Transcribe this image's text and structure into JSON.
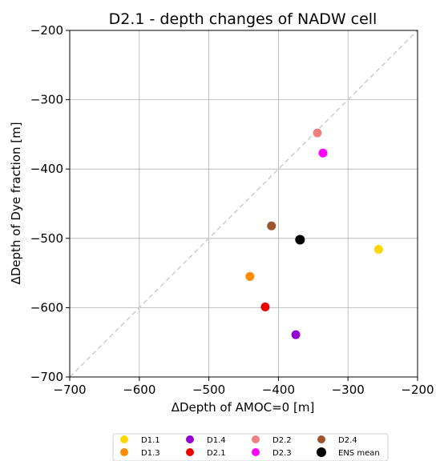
{
  "chart_data": {
    "type": "scatter",
    "title": "D2.1 - depth changes of NADW cell",
    "xlabel": "ΔDepth of AMOC=0 [m]",
    "ylabel": "ΔDepth of Dye fraction [m]",
    "xlim": [
      -700,
      -200
    ],
    "ylim": [
      -700,
      -200
    ],
    "xticks": [
      -700,
      -600,
      -500,
      -400,
      -300,
      -200
    ],
    "yticks": [
      -700,
      -600,
      -500,
      -400,
      -300,
      -200
    ],
    "tick_labels_x": [
      "−700",
      "−600",
      "−500",
      "−400",
      "−300",
      "−200"
    ],
    "tick_labels_y": [
      "−700",
      "−600",
      "−500",
      "−400",
      "−300",
      "−200"
    ],
    "grid": true,
    "reference_line": "y = x (dashed, light gray)",
    "legend_placement": "bottom-center",
    "series": [
      {
        "name": "D1.1",
        "color": "#FFD700",
        "x": -256,
        "y": -516
      },
      {
        "name": "D1.3",
        "color": "#FF8C00",
        "x": -441,
        "y": -555
      },
      {
        "name": "D1.4",
        "color": "#9400D3",
        "x": -375,
        "y": -639
      },
      {
        "name": "D2.1",
        "color": "#EE0000",
        "x": -419,
        "y": -599
      },
      {
        "name": "D2.2",
        "color": "#F08080",
        "x": -344,
        "y": -348
      },
      {
        "name": "D2.3",
        "color": "#FF00FF",
        "x": -336,
        "y": -377
      },
      {
        "name": "D2.4",
        "color": "#A0522D",
        "x": -410,
        "y": -482
      },
      {
        "name": "ENS mean",
        "color": "#000000",
        "x": -369,
        "y": -502
      }
    ]
  }
}
